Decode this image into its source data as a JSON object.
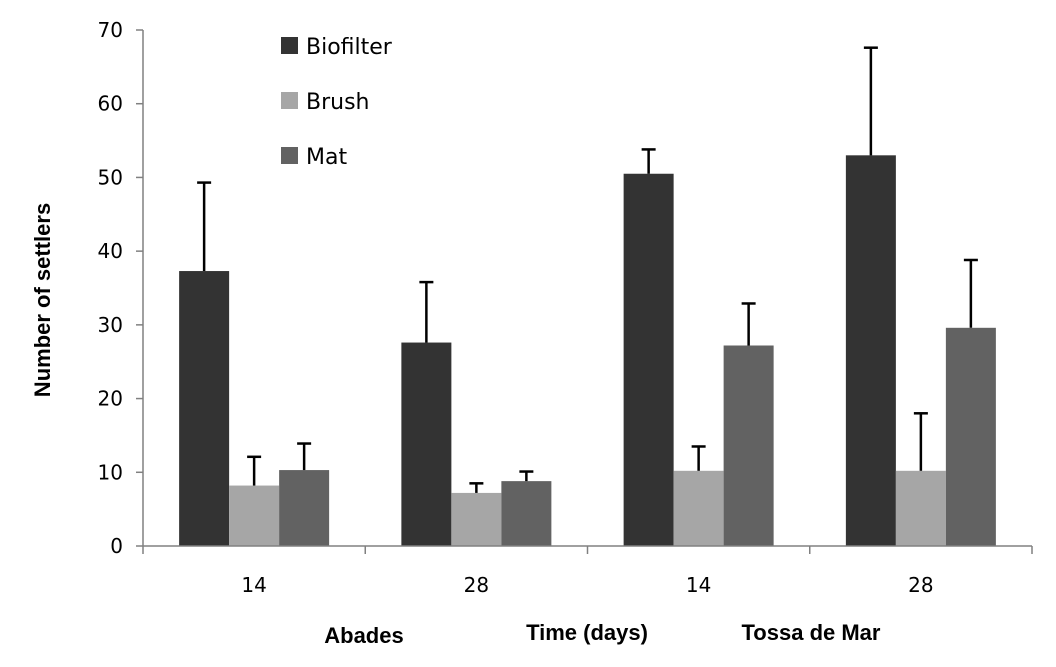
{
  "chart_data": {
    "type": "bar",
    "ylabel": "Number of settlers",
    "xlabel": "Time (days)",
    "groups": [
      "Abades",
      "Tossa de Mar"
    ],
    "categories": [
      "14",
      "28",
      "14",
      "28"
    ],
    "ylim": [
      0,
      70
    ],
    "yticks": [
      0,
      10,
      20,
      30,
      40,
      50,
      60,
      70
    ],
    "grid": false,
    "legend_position": "top-left",
    "series": [
      {
        "name": "Biofilter",
        "color": "#333333",
        "values": [
          37.3,
          27.6,
          50.5,
          53.0
        ],
        "errors": [
          12.0,
          8.2,
          3.3,
          14.6
        ]
      },
      {
        "name": "Brush",
        "color": "#a6a6a6",
        "values": [
          8.2,
          7.2,
          10.2,
          10.2
        ],
        "errors": [
          3.9,
          1.3,
          3.3,
          7.8
        ]
      },
      {
        "name": "Mat",
        "color": "#626262",
        "values": [
          10.3,
          8.8,
          27.2,
          29.6
        ],
        "errors": [
          3.6,
          1.3,
          5.7,
          9.2
        ]
      }
    ]
  }
}
